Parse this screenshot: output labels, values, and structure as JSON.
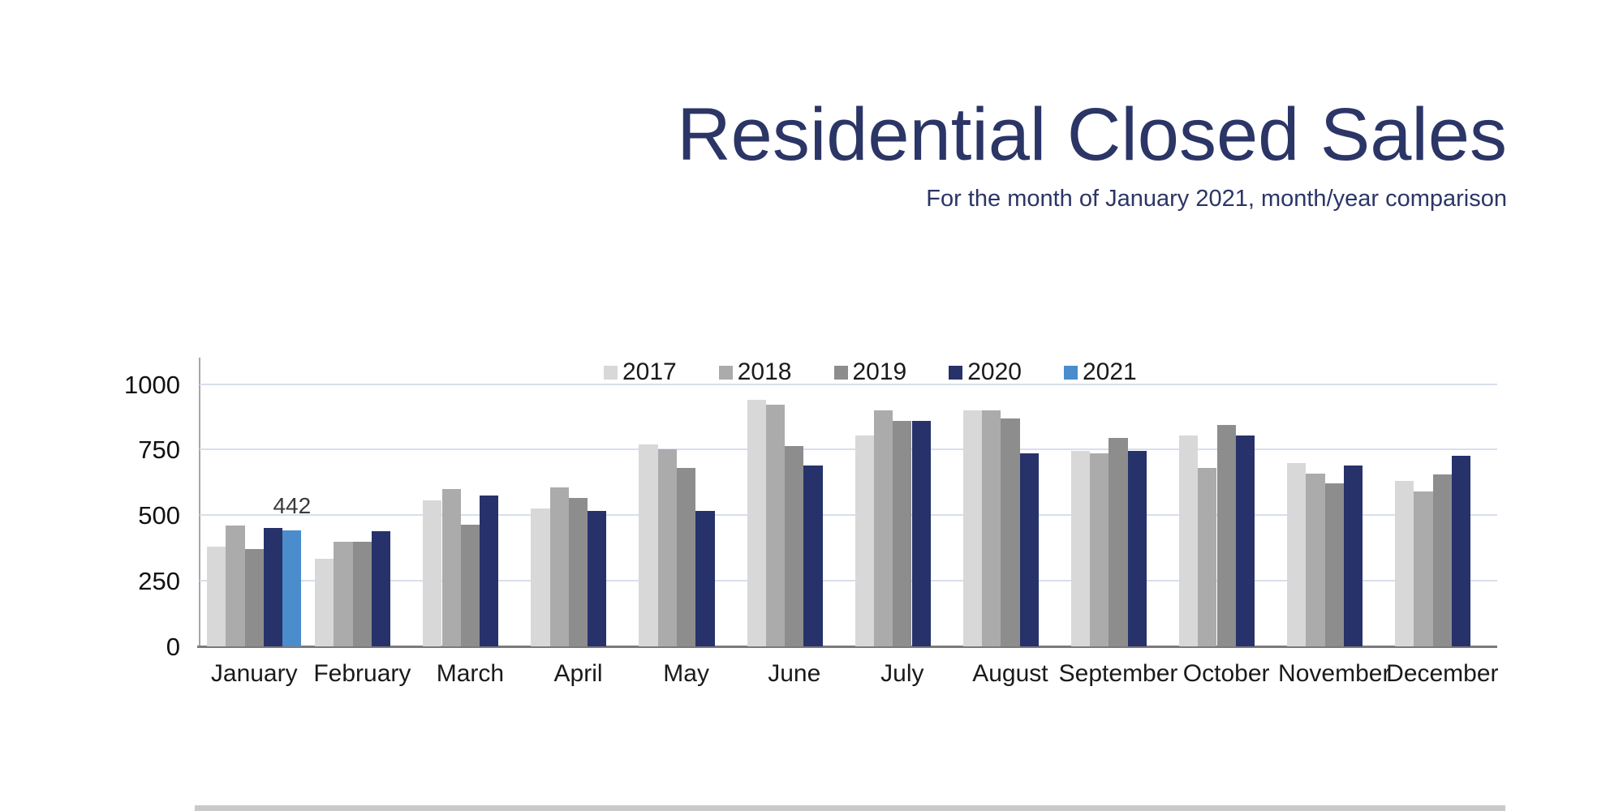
{
  "header": {
    "title": "Residential Closed Sales",
    "subtitle": "For the month of January 2021, month/year comparison",
    "title_color": "#2b3566"
  },
  "chart_data": {
    "type": "bar",
    "title": "Residential Closed Sales",
    "subtitle": "For the month of January 2021, month/year comparison",
    "categories": [
      "January",
      "February",
      "March",
      "April",
      "May",
      "June",
      "July",
      "August",
      "September",
      "October",
      "November",
      "December"
    ],
    "series": [
      {
        "name": "2017",
        "color": "#d8d8d8",
        "values": [
          380,
          335,
          555,
          525,
          770,
          940,
          805,
          900,
          745,
          805,
          700,
          630
        ]
      },
      {
        "name": "2018",
        "color": "#ababab",
        "values": [
          460,
          400,
          600,
          605,
          750,
          920,
          900,
          900,
          735,
          680,
          660,
          590
        ]
      },
      {
        "name": "2019",
        "color": "#8d8d8d",
        "values": [
          370,
          400,
          465,
          565,
          680,
          765,
          860,
          870,
          795,
          845,
          620,
          655
        ]
      },
      {
        "name": "2020",
        "color": "#27326a",
        "values": [
          450,
          440,
          575,
          515,
          515,
          690,
          860,
          735,
          745,
          805,
          690,
          725
        ]
      },
      {
        "name": "2021",
        "color": "#4b8ccd",
        "values": [
          442,
          null,
          null,
          null,
          null,
          null,
          null,
          null,
          null,
          null,
          null,
          null
        ]
      }
    ],
    "annotations": [
      {
        "text": "442",
        "series": "2021",
        "category": "January"
      }
    ],
    "y_axis": {
      "ticks": [
        0,
        250,
        500,
        750,
        1000
      ],
      "plot_max": 1100
    },
    "ylim": [
      0,
      1100
    ],
    "xlabel": "",
    "ylabel": "",
    "grid": true,
    "legend_position": "top-center",
    "gridline_color": "#d8dfec",
    "yaxis_line_color": "#a6a6a6",
    "baseline_color": "#7a7a7a"
  }
}
